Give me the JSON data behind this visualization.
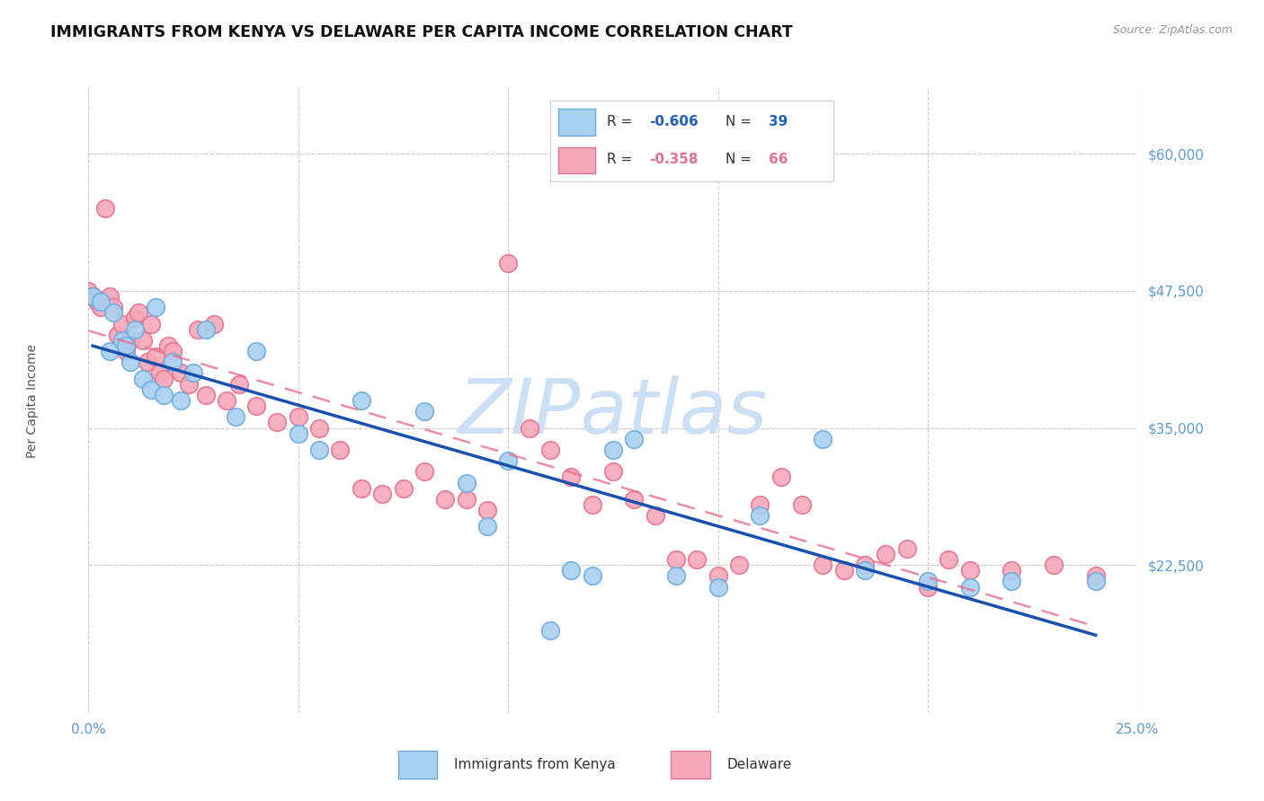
{
  "title": "IMMIGRANTS FROM KENYA VS DELAWARE PER CAPITA INCOME CORRELATION CHART",
  "source": "Source: ZipAtlas.com",
  "ylabel": "Per Capita Income",
  "xlim": [
    0.0,
    0.25
  ],
  "ylim": [
    9000,
    66000
  ],
  "yticks": [
    22500,
    35000,
    47500,
    60000
  ],
  "ytick_labels": [
    "$22,500",
    "$35,000",
    "$47,500",
    "$60,000"
  ],
  "xticks": [
    0.0,
    0.05,
    0.1,
    0.15,
    0.2,
    0.25
  ],
  "xtick_labels": [
    "0.0%",
    "",
    "",
    "",
    "",
    "25.0%"
  ],
  "series1_label": "Immigrants from Kenya",
  "series1_R": "-0.606",
  "series1_N": "39",
  "series1_color": "#a8d0f0",
  "series1_edge_color": "#6aabdf",
  "series2_label": "Delaware",
  "series2_R": "-0.358",
  "series2_N": "66",
  "series2_color": "#f5a8b8",
  "series2_edge_color": "#e87090",
  "line1_color": "#1a50b0",
  "line2_color": "#e87090",
  "tick_label_color": "#5b9bd5",
  "grid_color": "#cccccc",
  "background_color": "#ffffff",
  "watermark_color": "#cce0f5",
  "series1_x": [
    0.001,
    0.003,
    0.005,
    0.006,
    0.008,
    0.009,
    0.01,
    0.011,
    0.013,
    0.015,
    0.016,
    0.018,
    0.02,
    0.022,
    0.025,
    0.028,
    0.035,
    0.04,
    0.05,
    0.055,
    0.065,
    0.08,
    0.09,
    0.095,
    0.1,
    0.11,
    0.115,
    0.12,
    0.125,
    0.13,
    0.14,
    0.15,
    0.16,
    0.175,
    0.185,
    0.2,
    0.21,
    0.22,
    0.24
  ],
  "series1_y": [
    47000,
    46500,
    42000,
    45500,
    43000,
    42500,
    41000,
    44000,
    39500,
    38500,
    46000,
    38000,
    41000,
    37500,
    40000,
    44000,
    36000,
    42000,
    34500,
    33000,
    37500,
    36500,
    30000,
    26000,
    32000,
    16500,
    22000,
    21500,
    33000,
    34000,
    21500,
    20500,
    27000,
    34000,
    22000,
    21000,
    20500,
    21000,
    21000
  ],
  "series2_x": [
    0.0,
    0.001,
    0.002,
    0.003,
    0.004,
    0.005,
    0.006,
    0.007,
    0.008,
    0.009,
    0.01,
    0.011,
    0.012,
    0.013,
    0.014,
    0.015,
    0.016,
    0.017,
    0.018,
    0.019,
    0.02,
    0.022,
    0.024,
    0.026,
    0.028,
    0.03,
    0.033,
    0.036,
    0.04,
    0.045,
    0.05,
    0.055,
    0.06,
    0.065,
    0.07,
    0.075,
    0.08,
    0.085,
    0.09,
    0.095,
    0.1,
    0.105,
    0.11,
    0.115,
    0.12,
    0.125,
    0.13,
    0.135,
    0.14,
    0.145,
    0.15,
    0.155,
    0.16,
    0.165,
    0.17,
    0.175,
    0.18,
    0.185,
    0.19,
    0.195,
    0.2,
    0.205,
    0.21,
    0.22,
    0.23,
    0.24
  ],
  "series2_y": [
    47500,
    47000,
    46500,
    46000,
    55000,
    47000,
    46000,
    43500,
    44500,
    42000,
    43000,
    45000,
    45500,
    43000,
    41000,
    44500,
    41500,
    40000,
    39500,
    42500,
    42000,
    40000,
    39000,
    44000,
    38000,
    44500,
    37500,
    39000,
    37000,
    35500,
    36000,
    35000,
    33000,
    29500,
    29000,
    29500,
    31000,
    28500,
    28500,
    27500,
    50000,
    35000,
    33000,
    30500,
    28000,
    31000,
    28500,
    27000,
    23000,
    23000,
    21500,
    22500,
    28000,
    30500,
    28000,
    22500,
    22000,
    22500,
    23500,
    24000,
    20500,
    23000,
    22000,
    22000,
    22500,
    21500
  ]
}
